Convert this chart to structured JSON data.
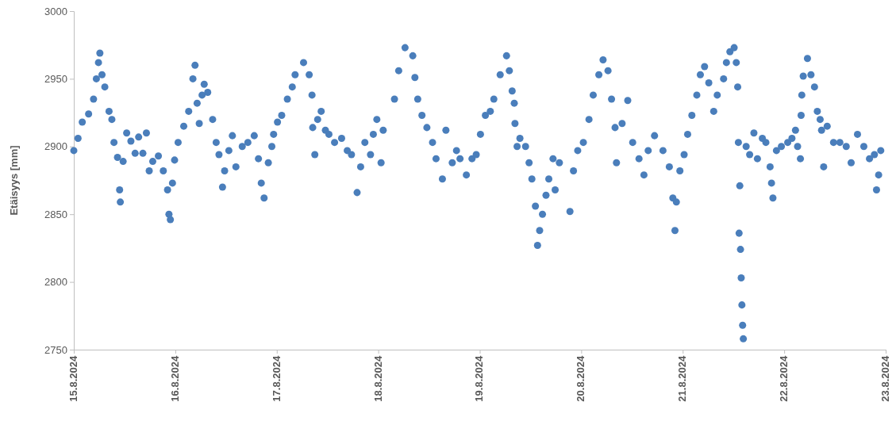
{
  "chart_data": {
    "type": "scatter",
    "ylabel": "Etäisyys [mm]",
    "marker": "circle",
    "xlim": [
      "2024-08-15",
      "2024-08-23"
    ],
    "xticks": [
      {
        "value": "2024-08-15",
        "label": "15.8.2024"
      },
      {
        "value": "2024-08-16",
        "label": "16.8.2024"
      },
      {
        "value": "2024-08-17",
        "label": "17.8.2024"
      },
      {
        "value": "2024-08-18",
        "label": "18.8.2024"
      },
      {
        "value": "2024-08-19",
        "label": "19.8.2024"
      },
      {
        "value": "2024-08-20",
        "label": "20.8.2024"
      },
      {
        "value": "2024-08-21",
        "label": "21.8.2024"
      },
      {
        "value": "2024-08-22",
        "label": "22.8.2024"
      },
      {
        "value": "2024-08-23",
        "label": "23.8.2024"
      }
    ],
    "ylim": [
      2750,
      3000
    ],
    "yticks": [
      2750,
      2800,
      2850,
      2900,
      2950,
      3000
    ],
    "series": [
      {
        "color": "#4a7ebb",
        "x": [
          "2024-08-15T00:00",
          "2024-08-15T01:00",
          "2024-08-15T02:00",
          "2024-08-15T03:30",
          "2024-08-15T04:40",
          "2024-08-15T05:20",
          "2024-08-15T05:50",
          "2024-08-15T06:10",
          "2024-08-15T06:40",
          "2024-08-15T07:20",
          "2024-08-15T08:20",
          "2024-08-15T09:00",
          "2024-08-15T09:30",
          "2024-08-15T10:20",
          "2024-08-15T10:50",
          "2024-08-15T11:00",
          "2024-08-15T11:40",
          "2024-08-15T12:30",
          "2024-08-15T13:30",
          "2024-08-15T14:30",
          "2024-08-15T15:20",
          "2024-08-15T16:20",
          "2024-08-15T17:10",
          "2024-08-15T17:50",
          "2024-08-15T18:40",
          "2024-08-15T20:00",
          "2024-08-15T21:10",
          "2024-08-15T22:10",
          "2024-08-15T22:30",
          "2024-08-15T22:50",
          "2024-08-15T23:20",
          "2024-08-15T23:50",
          "2024-08-16T00:40",
          "2024-08-16T02:00",
          "2024-08-16T03:10",
          "2024-08-16T04:10",
          "2024-08-16T04:40",
          "2024-08-16T05:10",
          "2024-08-16T05:40",
          "2024-08-16T06:20",
          "2024-08-16T06:50",
          "2024-08-16T07:40",
          "2024-08-16T08:50",
          "2024-08-16T09:40",
          "2024-08-16T10:20",
          "2024-08-16T11:10",
          "2024-08-16T11:40",
          "2024-08-16T12:40",
          "2024-08-16T13:30",
          "2024-08-16T14:20",
          "2024-08-16T15:50",
          "2024-08-16T17:10",
          "2024-08-16T18:40",
          "2024-08-16T19:40",
          "2024-08-16T20:20",
          "2024-08-16T21:00",
          "2024-08-16T22:00",
          "2024-08-16T22:50",
          "2024-08-16T23:15",
          "2024-08-17T00:10",
          "2024-08-17T01:10",
          "2024-08-17T02:30",
          "2024-08-17T03:40",
          "2024-08-17T04:20",
          "2024-08-17T06:20",
          "2024-08-17T07:40",
          "2024-08-17T08:20",
          "2024-08-17T08:30",
          "2024-08-17T09:00",
          "2024-08-17T09:40",
          "2024-08-17T10:30",
          "2024-08-17T11:30",
          "2024-08-17T12:20",
          "2024-08-17T13:40",
          "2024-08-17T15:20",
          "2024-08-17T16:40",
          "2024-08-17T17:40",
          "2024-08-17T19:00",
          "2024-08-17T19:50",
          "2024-08-17T20:50",
          "2024-08-17T22:10",
          "2024-08-17T22:50",
          "2024-08-17T23:40",
          "2024-08-18T00:40",
          "2024-08-18T01:10",
          "2024-08-18T03:50",
          "2024-08-18T04:50",
          "2024-08-18T06:20",
          "2024-08-18T08:10",
          "2024-08-18T08:40",
          "2024-08-18T09:20",
          "2024-08-18T10:20",
          "2024-08-18T11:30",
          "2024-08-18T12:50",
          "2024-08-18T13:40",
          "2024-08-18T15:10",
          "2024-08-18T16:00",
          "2024-08-18T17:30",
          "2024-08-18T18:30",
          "2024-08-18T19:20",
          "2024-08-18T20:50",
          "2024-08-18T22:10",
          "2024-08-18T23:10",
          "2024-08-19T00:10",
          "2024-08-19T01:20",
          "2024-08-19T02:30",
          "2024-08-19T03:20",
          "2024-08-19T04:50",
          "2024-08-19T06:20",
          "2024-08-19T07:00",
          "2024-08-19T07:40",
          "2024-08-19T08:10",
          "2024-08-19T08:20",
          "2024-08-19T08:50",
          "2024-08-19T09:30",
          "2024-08-19T10:50",
          "2024-08-19T11:40",
          "2024-08-19T12:20",
          "2024-08-19T13:10",
          "2024-08-19T13:40",
          "2024-08-19T14:10",
          "2024-08-19T14:50",
          "2024-08-19T15:40",
          "2024-08-19T16:20",
          "2024-08-19T17:20",
          "2024-08-19T17:50",
          "2024-08-19T18:50",
          "2024-08-19T21:20",
          "2024-08-19T22:10",
          "2024-08-19T23:10",
          "2024-08-20T00:30",
          "2024-08-20T01:50",
          "2024-08-20T02:50",
          "2024-08-20T04:10",
          "2024-08-20T05:10",
          "2024-08-20T06:20",
          "2024-08-20T07:10",
          "2024-08-20T08:00",
          "2024-08-20T08:20",
          "2024-08-20T09:40",
          "2024-08-20T11:00",
          "2024-08-20T12:10",
          "2024-08-20T13:40",
          "2024-08-20T14:50",
          "2024-08-20T15:50",
          "2024-08-20T17:20",
          "2024-08-20T19:20",
          "2024-08-20T20:50",
          "2024-08-20T21:40",
          "2024-08-20T22:10",
          "2024-08-20T22:30",
          "2024-08-20T23:20",
          "2024-08-21T00:20",
          "2024-08-21T01:10",
          "2024-08-21T02:10",
          "2024-08-21T03:20",
          "2024-08-21T04:10",
          "2024-08-21T05:10",
          "2024-08-21T06:10",
          "2024-08-21T07:20",
          "2024-08-21T08:10",
          "2024-08-21T09:40",
          "2024-08-21T10:20",
          "2024-08-21T11:10",
          "2024-08-21T12:10",
          "2024-08-21T12:40",
          "2024-08-21T13:00",
          "2024-08-21T13:10",
          "2024-08-21T13:20",
          "2024-08-21T13:30",
          "2024-08-21T13:40",
          "2024-08-21T13:50",
          "2024-08-21T14:00",
          "2024-08-21T14:10",
          "2024-08-21T14:20",
          "2024-08-21T15:00",
          "2024-08-21T15:50",
          "2024-08-21T16:50",
          "2024-08-21T17:40",
          "2024-08-21T18:50",
          "2024-08-21T19:40",
          "2024-08-21T20:40",
          "2024-08-21T21:00",
          "2024-08-21T21:20",
          "2024-08-21T22:10",
          "2024-08-21T23:20",
          "2024-08-22T00:50",
          "2024-08-22T01:50",
          "2024-08-22T02:40",
          "2024-08-22T03:10",
          "2024-08-22T03:50",
          "2024-08-22T04:00",
          "2024-08-22T04:10",
          "2024-08-22T04:30",
          "2024-08-22T05:30",
          "2024-08-22T06:20",
          "2024-08-22T07:10",
          "2024-08-22T07:50",
          "2024-08-22T08:30",
          "2024-08-22T08:50",
          "2024-08-22T09:20",
          "2024-08-22T10:10",
          "2024-08-22T11:40",
          "2024-08-22T13:10",
          "2024-08-22T14:40",
          "2024-08-22T15:50",
          "2024-08-22T17:20",
          "2024-08-22T18:50",
          "2024-08-22T20:10",
          "2024-08-22T21:20",
          "2024-08-22T21:50",
          "2024-08-22T22:20",
          "2024-08-22T22:50"
        ],
        "values": [
          2897,
          2906,
          2918,
          2924,
          2935,
          2950,
          2962,
          2969,
          2953,
          2944,
          2926,
          2920,
          2903,
          2892,
          2868,
          2859,
          2889,
          2910,
          2904,
          2895,
          2907,
          2895,
          2910,
          2882,
          2889,
          2893,
          2882,
          2868,
          2850,
          2846,
          2873,
          2890,
          2903,
          2915,
          2926,
          2950,
          2960,
          2932,
          2917,
          2938,
          2946,
          2940,
          2920,
          2903,
          2894,
          2870,
          2882,
          2897,
          2908,
          2885,
          2900,
          2903,
          2908,
          2891,
          2873,
          2862,
          2888,
          2900,
          2909,
          2918,
          2923,
          2935,
          2944,
          2953,
          2962,
          2953,
          2938,
          2914,
          2894,
          2920,
          2926,
          2912,
          2909,
          2903,
          2906,
          2897,
          2894,
          2866,
          2885,
          2903,
          2894,
          2909,
          2920,
          2888,
          2912,
          2935,
          2956,
          2973,
          2967,
          2951,
          2935,
          2923,
          2914,
          2903,
          2891,
          2876,
          2912,
          2888,
          2897,
          2891,
          2879,
          2891,
          2894,
          2909,
          2923,
          2926,
          2935,
          2953,
          2967,
          2956,
          2941,
          2932,
          2917,
          2900,
          2906,
          2900,
          2888,
          2876,
          2856,
          2827,
          2838,
          2850,
          2864,
          2876,
          2891,
          2868,
          2888,
          2852,
          2882,
          2897,
          2903,
          2920,
          2938,
          2953,
          2964,
          2956,
          2935,
          2914,
          2888,
          2917,
          2934,
          2903,
          2891,
          2879,
          2897,
          2908,
          2897,
          2885,
          2862,
          2838,
          2859,
          2882,
          2894,
          2909,
          2923,
          2938,
          2953,
          2959,
          2947,
          2926,
          2938,
          2950,
          2962,
          2970,
          2973,
          2962,
          2944,
          2903,
          2836,
          2871,
          2824,
          2803,
          2783,
          2768,
          2758,
          2900,
          2894,
          2910,
          2891,
          2906,
          2903,
          2885,
          2873,
          2862,
          2897,
          2900,
          2903,
          2906,
          2912,
          2900,
          2891,
          2923,
          2938,
          2952,
          2965,
          2953,
          2944,
          2926,
          2920,
          2912,
          2885,
          2915,
          2903,
          2903,
          2900,
          2888,
          2909,
          2900,
          2891,
          2894,
          2868,
          2879,
          2897
        ]
      }
    ]
  }
}
